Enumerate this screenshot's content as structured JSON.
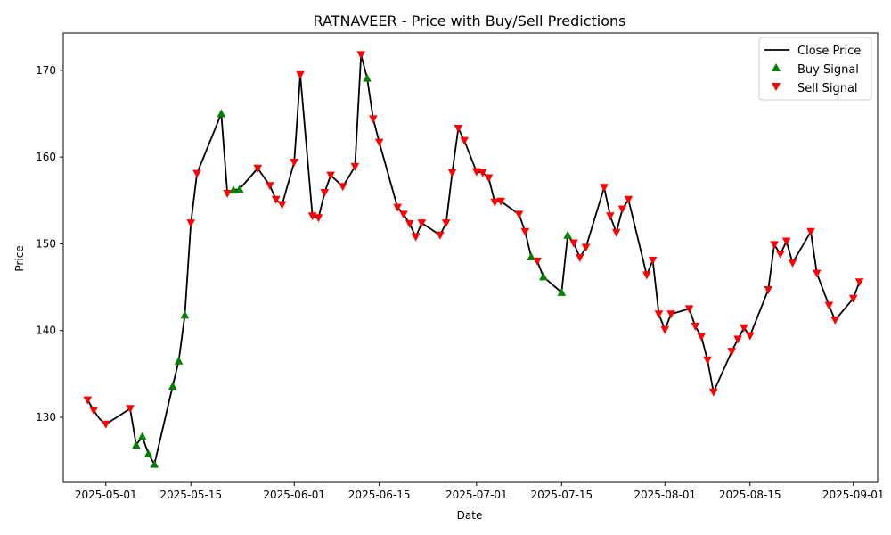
{
  "chart_data": {
    "type": "line",
    "title": "RATNAVEER - Price with Buy/Sell Predictions",
    "xlabel": "Date",
    "ylabel": "Price",
    "xlim": [
      "2025-04-24",
      "2025-09-05"
    ],
    "ylim": [
      122.5,
      174.3
    ],
    "x_ticks": [
      "2025-05-01",
      "2025-05-15",
      "2025-06-01",
      "2025-06-15",
      "2025-07-01",
      "2025-07-15",
      "2025-08-01",
      "2025-08-15",
      "2025-09-01"
    ],
    "y_ticks": [
      130,
      140,
      150,
      160,
      170
    ],
    "grid": false,
    "legend_position": "top-right",
    "legend": [
      "Close Price",
      "Buy Signal",
      "Sell Signal"
    ],
    "colors": {
      "close": "#000000",
      "buy": "#008000",
      "sell": "#ff0000"
    },
    "series": [
      {
        "name": "Close Price",
        "points": [
          [
            "2025-04-28",
            132.0
          ],
          [
            "2025-04-29",
            130.8
          ],
          [
            "2025-04-30",
            129.8
          ],
          [
            "2025-05-01",
            129.2
          ],
          [
            "2025-05-05",
            131.0
          ],
          [
            "2025-05-06",
            126.8
          ],
          [
            "2025-05-07",
            127.8
          ],
          [
            "2025-05-08",
            125.8
          ],
          [
            "2025-05-09",
            124.6
          ],
          [
            "2025-05-12",
            133.6
          ],
          [
            "2025-05-13",
            136.5
          ],
          [
            "2025-05-14",
            141.8
          ],
          [
            "2025-05-15",
            152.4
          ],
          [
            "2025-05-16",
            158.1
          ],
          [
            "2025-05-20",
            165.0
          ],
          [
            "2025-05-21",
            155.8
          ],
          [
            "2025-05-22",
            156.2
          ],
          [
            "2025-05-23",
            156.3
          ],
          [
            "2025-05-26",
            158.7
          ],
          [
            "2025-05-28",
            156.7
          ],
          [
            "2025-05-29",
            155.1
          ],
          [
            "2025-05-30",
            154.5
          ],
          [
            "2025-06-01",
            159.4
          ],
          [
            "2025-06-02",
            169.5
          ],
          [
            "2025-06-04",
            153.2
          ],
          [
            "2025-06-05",
            153.0
          ],
          [
            "2025-06-06",
            155.9
          ],
          [
            "2025-06-07",
            157.9
          ],
          [
            "2025-06-09",
            156.6
          ],
          [
            "2025-06-11",
            158.9
          ],
          [
            "2025-06-12",
            171.8
          ],
          [
            "2025-06-13",
            169.1
          ],
          [
            "2025-06-14",
            164.4
          ],
          [
            "2025-06-15",
            161.7
          ],
          [
            "2025-06-18",
            154.2
          ],
          [
            "2025-06-19",
            153.4
          ],
          [
            "2025-06-20",
            152.3
          ],
          [
            "2025-06-21",
            150.8
          ],
          [
            "2025-06-22",
            152.4
          ],
          [
            "2025-06-25",
            151.0
          ],
          [
            "2025-06-26",
            152.4
          ],
          [
            "2025-06-27",
            158.2
          ],
          [
            "2025-06-28",
            163.3
          ],
          [
            "2025-06-29",
            161.9
          ],
          [
            "2025-07-01",
            158.3
          ],
          [
            "2025-07-02",
            158.2
          ],
          [
            "2025-07-03",
            157.6
          ],
          [
            "2025-07-04",
            154.8
          ],
          [
            "2025-07-05",
            154.9
          ],
          [
            "2025-07-08",
            153.4
          ],
          [
            "2025-07-09",
            151.4
          ],
          [
            "2025-07-10",
            148.5
          ],
          [
            "2025-07-11",
            148.0
          ],
          [
            "2025-07-12",
            146.2
          ],
          [
            "2025-07-15",
            144.4
          ],
          [
            "2025-07-16",
            151.0
          ],
          [
            "2025-07-17",
            150.1
          ],
          [
            "2025-07-18",
            148.4
          ],
          [
            "2025-07-19",
            149.6
          ],
          [
            "2025-07-22",
            156.5
          ],
          [
            "2025-07-23",
            153.2
          ],
          [
            "2025-07-24",
            151.3
          ],
          [
            "2025-07-25",
            154.0
          ],
          [
            "2025-07-26",
            155.1
          ],
          [
            "2025-07-29",
            146.4
          ],
          [
            "2025-07-30",
            148.1
          ],
          [
            "2025-07-31",
            141.9
          ],
          [
            "2025-08-01",
            140.1
          ],
          [
            "2025-08-02",
            141.9
          ],
          [
            "2025-08-05",
            142.5
          ],
          [
            "2025-08-06",
            140.5
          ],
          [
            "2025-08-07",
            139.3
          ],
          [
            "2025-08-08",
            136.6
          ],
          [
            "2025-08-09",
            132.9
          ],
          [
            "2025-08-12",
            137.6
          ],
          [
            "2025-08-13",
            139.0
          ],
          [
            "2025-08-14",
            140.3
          ],
          [
            "2025-08-15",
            139.4
          ],
          [
            "2025-08-18",
            144.7
          ],
          [
            "2025-08-19",
            149.9
          ],
          [
            "2025-08-20",
            148.8
          ],
          [
            "2025-08-21",
            150.3
          ],
          [
            "2025-08-22",
            147.8
          ],
          [
            "2025-08-25",
            151.4
          ],
          [
            "2025-08-26",
            146.6
          ],
          [
            "2025-08-28",
            142.9
          ],
          [
            "2025-08-29",
            141.2
          ],
          [
            "2025-09-01",
            143.7
          ],
          [
            "2025-09-02",
            145.6
          ]
        ]
      },
      {
        "name": "Buy Signal",
        "points": [
          [
            "2025-05-06",
            126.8
          ],
          [
            "2025-05-07",
            127.8
          ],
          [
            "2025-05-08",
            125.8
          ],
          [
            "2025-05-09",
            124.6
          ],
          [
            "2025-05-12",
            133.6
          ],
          [
            "2025-05-13",
            136.5
          ],
          [
            "2025-05-14",
            141.8
          ],
          [
            "2025-05-20",
            165.0
          ],
          [
            "2025-05-22",
            156.2
          ],
          [
            "2025-05-23",
            156.3
          ],
          [
            "2025-06-13",
            169.1
          ],
          [
            "2025-07-10",
            148.5
          ],
          [
            "2025-07-12",
            146.2
          ],
          [
            "2025-07-15",
            144.4
          ],
          [
            "2025-07-16",
            151.0
          ]
        ]
      },
      {
        "name": "Sell Signal",
        "points": [
          [
            "2025-04-28",
            132.0
          ],
          [
            "2025-04-29",
            130.8
          ],
          [
            "2025-05-01",
            129.2
          ],
          [
            "2025-05-05",
            131.0
          ],
          [
            "2025-05-15",
            152.4
          ],
          [
            "2025-05-16",
            158.1
          ],
          [
            "2025-05-21",
            155.8
          ],
          [
            "2025-05-26",
            158.7
          ],
          [
            "2025-05-28",
            156.7
          ],
          [
            "2025-05-29",
            155.1
          ],
          [
            "2025-05-30",
            154.5
          ],
          [
            "2025-06-01",
            159.4
          ],
          [
            "2025-06-02",
            169.5
          ],
          [
            "2025-06-04",
            153.2
          ],
          [
            "2025-06-05",
            153.0
          ],
          [
            "2025-06-06",
            155.9
          ],
          [
            "2025-06-07",
            157.9
          ],
          [
            "2025-06-09",
            156.6
          ],
          [
            "2025-06-11",
            158.9
          ],
          [
            "2025-06-12",
            171.8
          ],
          [
            "2025-06-14",
            164.4
          ],
          [
            "2025-06-15",
            161.7
          ],
          [
            "2025-06-18",
            154.2
          ],
          [
            "2025-06-19",
            153.4
          ],
          [
            "2025-06-20",
            152.3
          ],
          [
            "2025-06-21",
            150.8
          ],
          [
            "2025-06-22",
            152.4
          ],
          [
            "2025-06-25",
            151.0
          ],
          [
            "2025-06-26",
            152.4
          ],
          [
            "2025-06-27",
            158.2
          ],
          [
            "2025-06-28",
            163.3
          ],
          [
            "2025-06-29",
            161.9
          ],
          [
            "2025-07-01",
            158.3
          ],
          [
            "2025-07-02",
            158.2
          ],
          [
            "2025-07-03",
            157.6
          ],
          [
            "2025-07-04",
            154.8
          ],
          [
            "2025-07-05",
            154.9
          ],
          [
            "2025-07-08",
            153.4
          ],
          [
            "2025-07-09",
            151.4
          ],
          [
            "2025-07-11",
            148.0
          ],
          [
            "2025-07-17",
            150.1
          ],
          [
            "2025-07-18",
            148.4
          ],
          [
            "2025-07-19",
            149.6
          ],
          [
            "2025-07-22",
            156.5
          ],
          [
            "2025-07-23",
            153.2
          ],
          [
            "2025-07-24",
            151.3
          ],
          [
            "2025-07-25",
            154.0
          ],
          [
            "2025-07-26",
            155.1
          ],
          [
            "2025-07-29",
            146.4
          ],
          [
            "2025-07-30",
            148.1
          ],
          [
            "2025-07-31",
            141.9
          ],
          [
            "2025-08-01",
            140.1
          ],
          [
            "2025-08-02",
            141.9
          ],
          [
            "2025-08-05",
            142.5
          ],
          [
            "2025-08-06",
            140.5
          ],
          [
            "2025-08-07",
            139.3
          ],
          [
            "2025-08-08",
            136.6
          ],
          [
            "2025-08-09",
            132.9
          ],
          [
            "2025-08-12",
            137.6
          ],
          [
            "2025-08-13",
            139.0
          ],
          [
            "2025-08-14",
            140.3
          ],
          [
            "2025-08-15",
            139.4
          ],
          [
            "2025-08-18",
            144.7
          ],
          [
            "2025-08-19",
            149.9
          ],
          [
            "2025-08-20",
            148.8
          ],
          [
            "2025-08-21",
            150.3
          ],
          [
            "2025-08-22",
            147.8
          ],
          [
            "2025-08-25",
            151.4
          ],
          [
            "2025-08-26",
            146.6
          ],
          [
            "2025-08-28",
            142.9
          ],
          [
            "2025-08-29",
            141.2
          ],
          [
            "2025-09-01",
            143.7
          ],
          [
            "2025-09-02",
            145.6
          ]
        ]
      }
    ]
  }
}
